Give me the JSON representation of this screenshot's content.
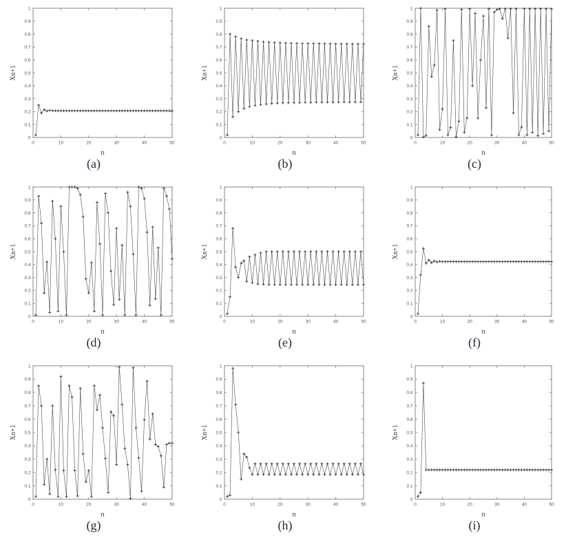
{
  "figure": {
    "background": "#ffffff",
    "line_color": "#4a4a4a",
    "marker_color": "#333333",
    "axis_color": "#7a7a7a",
    "tick_label_color": "#555555"
  },
  "chart_data": [
    {
      "type": "line",
      "caption": "(a)",
      "xlabel": "n",
      "ylabel": "Xn+1",
      "xlim": [
        0,
        50
      ],
      "ylim": [
        0,
        1
      ],
      "xticks": [
        0,
        10,
        20,
        30,
        40,
        50
      ],
      "yticks": [
        0,
        0.1,
        0.2,
        0.3,
        0.4,
        0.5,
        0.6,
        0.7,
        0.8,
        0.9,
        1
      ],
      "marker": "+",
      "legend": null,
      "grid": false,
      "values": [
        0.02,
        0.25,
        0.19,
        0.215,
        0.205,
        0.21,
        0.208,
        0.207,
        0.207,
        0.207,
        0.207,
        0.207,
        0.207,
        0.207,
        0.207,
        0.207,
        0.207,
        0.207,
        0.207,
        0.207,
        0.207,
        0.207,
        0.207,
        0.207,
        0.207,
        0.207,
        0.207,
        0.207,
        0.207,
        0.207,
        0.207,
        0.207,
        0.207,
        0.207,
        0.207,
        0.207,
        0.207,
        0.207,
        0.207,
        0.207,
        0.207,
        0.207,
        0.207,
        0.207,
        0.207,
        0.207,
        0.207,
        0.207,
        0.207,
        0.207
      ]
    },
    {
      "type": "line",
      "caption": "(b)",
      "xlabel": "n",
      "ylabel": "Xn+1",
      "xlim": [
        0,
        50
      ],
      "ylim": [
        0,
        1
      ],
      "xticks": [
        0,
        10,
        20,
        30,
        40,
        50
      ],
      "yticks": [
        0,
        0.1,
        0.2,
        0.3,
        0.4,
        0.5,
        0.6,
        0.7,
        0.8,
        0.9,
        1
      ],
      "marker": "+",
      "legend": null,
      "grid": false,
      "values": [
        0.02,
        0.8,
        0.16,
        0.78,
        0.2,
        0.765,
        0.225,
        0.755,
        0.24,
        0.75,
        0.248,
        0.745,
        0.255,
        0.74,
        0.26,
        0.737,
        0.263,
        0.734,
        0.266,
        0.732,
        0.268,
        0.73,
        0.269,
        0.729,
        0.27,
        0.728,
        0.271,
        0.727,
        0.272,
        0.727,
        0.272,
        0.726,
        0.273,
        0.726,
        0.273,
        0.725,
        0.274,
        0.725,
        0.274,
        0.724,
        0.274,
        0.724,
        0.275,
        0.724,
        0.275,
        0.723,
        0.275,
        0.723,
        0.275,
        0.723
      ]
    },
    {
      "type": "line",
      "caption": "(c)",
      "xlabel": "n",
      "ylabel": "Xn+1",
      "xlim": [
        0,
        50
      ],
      "ylim": [
        0,
        1
      ],
      "xticks": [
        0,
        10,
        20,
        30,
        40,
        50
      ],
      "yticks": [
        0,
        0.1,
        0.2,
        0.3,
        0.4,
        0.5,
        0.6,
        0.7,
        0.8,
        0.9,
        1
      ],
      "marker": "+",
      "legend": null,
      "grid": false,
      "values": [
        0.02,
        0.999,
        0.004,
        0.016,
        0.86,
        0.47,
        0.56,
        0.985,
        0.06,
        0.22,
        0.995,
        0.02,
        0.077,
        0.75,
        0.005,
        0.125,
        0.99,
        0.04,
        0.15,
        0.995,
        0.4,
        0.96,
        0.15,
        0.6,
        0.94,
        0.23,
        0.995,
        0.018,
        0.97,
        0.99,
        0.995,
        0.92,
        0.995,
        0.77,
        0.995,
        0.19,
        0.995,
        0.02,
        0.08,
        0.995,
        0.02,
        0.995,
        0.04,
        0.995,
        0.015,
        0.995,
        0.03,
        0.995,
        0.05,
        0.995
      ]
    },
    {
      "type": "line",
      "caption": "(d)",
      "xlabel": "n",
      "ylabel": "Xn+1",
      "xlim": [
        0,
        50
      ],
      "ylim": [
        0,
        1
      ],
      "xticks": [
        0,
        10,
        20,
        30,
        40,
        50
      ],
      "yticks": [
        0,
        0.1,
        0.2,
        0.3,
        0.4,
        0.5,
        0.6,
        0.7,
        0.8,
        0.9,
        1
      ],
      "marker": "+",
      "legend": null,
      "grid": false,
      "values": [
        0.01,
        0.93,
        0.72,
        0.18,
        0.42,
        0.03,
        0.89,
        0.6,
        0.04,
        0.85,
        0.5,
        0.01,
        1.0,
        1.0,
        1.0,
        0.99,
        0.94,
        0.77,
        0.29,
        0.18,
        0.415,
        0.04,
        0.88,
        0.56,
        0.01,
        0.95,
        0.8,
        0.35,
        0.09,
        0.68,
        0.13,
        0.55,
        0.01,
        0.96,
        0.85,
        0.48,
        0.01,
        1.0,
        0.99,
        0.91,
        0.65,
        0.085,
        0.69,
        0.135,
        0.53,
        0.01,
        0.99,
        0.93,
        0.83,
        0.445
      ]
    },
    {
      "type": "line",
      "caption": "(e)",
      "xlabel": "n",
      "ylabel": "Xn+1",
      "xlim": [
        0,
        50
      ],
      "ylim": [
        0,
        1
      ],
      "xticks": [
        0,
        10,
        20,
        30,
        40,
        50
      ],
      "yticks": [
        0,
        0.1,
        0.2,
        0.3,
        0.4,
        0.5,
        0.6,
        0.7,
        0.8,
        0.9,
        1
      ],
      "marker": "+",
      "legend": null,
      "grid": false,
      "values": [
        0.02,
        0.15,
        0.68,
        0.38,
        0.3,
        0.41,
        0.43,
        0.27,
        0.46,
        0.26,
        0.475,
        0.25,
        0.49,
        0.248,
        0.5,
        0.245,
        0.5,
        0.245,
        0.5,
        0.245,
        0.5,
        0.245,
        0.5,
        0.245,
        0.5,
        0.245,
        0.5,
        0.245,
        0.5,
        0.245,
        0.5,
        0.245,
        0.5,
        0.245,
        0.5,
        0.245,
        0.5,
        0.245,
        0.5,
        0.245,
        0.5,
        0.245,
        0.5,
        0.245,
        0.5,
        0.245,
        0.5,
        0.245,
        0.5,
        0.245
      ]
    },
    {
      "type": "line",
      "caption": "(f)",
      "xlabel": "n",
      "ylabel": "Xn+1",
      "xlim": [
        0,
        50
      ],
      "ylim": [
        0,
        1
      ],
      "xticks": [
        0,
        10,
        20,
        30,
        40,
        50
      ],
      "yticks": [
        0,
        0.1,
        0.2,
        0.3,
        0.4,
        0.5,
        0.6,
        0.7,
        0.8,
        0.9,
        1
      ],
      "marker": "+",
      "legend": null,
      "grid": false,
      "values": [
        0.02,
        0.32,
        0.525,
        0.41,
        0.435,
        0.415,
        0.428,
        0.42,
        0.425,
        0.422,
        0.423,
        0.423,
        0.423,
        0.423,
        0.423,
        0.423,
        0.423,
        0.423,
        0.423,
        0.423,
        0.423,
        0.423,
        0.423,
        0.423,
        0.423,
        0.423,
        0.423,
        0.423,
        0.423,
        0.423,
        0.423,
        0.423,
        0.423,
        0.423,
        0.423,
        0.423,
        0.423,
        0.423,
        0.423,
        0.423,
        0.423,
        0.423,
        0.423,
        0.423,
        0.423,
        0.423,
        0.423,
        0.423,
        0.423,
        0.423
      ]
    },
    {
      "type": "line",
      "caption": "(g)",
      "xlabel": "n",
      "ylabel": "Xn+1",
      "xlim": [
        0,
        50
      ],
      "ylim": [
        0,
        1
      ],
      "xticks": [
        0,
        10,
        20,
        30,
        40,
        50
      ],
      "yticks": [
        0,
        0.1,
        0.2,
        0.3,
        0.4,
        0.5,
        0.6,
        0.7,
        0.8,
        0.9,
        1
      ],
      "marker": "+",
      "legend": null,
      "grid": false,
      "values": [
        0.02,
        0.85,
        0.7,
        0.11,
        0.3,
        0.04,
        0.7,
        0.22,
        0.02,
        0.92,
        0.215,
        0.02,
        0.85,
        0.765,
        0.215,
        0.025,
        0.83,
        0.34,
        0.13,
        0.215,
        0.02,
        0.85,
        0.67,
        0.78,
        0.535,
        0.305,
        0.05,
        0.655,
        0.625,
        0.26,
        0.99,
        0.71,
        0.38,
        0.26,
        0.005,
        0.985,
        0.535,
        0.31,
        0.06,
        0.595,
        0.885,
        0.45,
        0.64,
        0.41,
        0.395,
        0.325,
        0.09,
        0.41,
        0.42,
        0.42
      ]
    },
    {
      "type": "line",
      "caption": "(h)",
      "xlabel": "n",
      "ylabel": "Xn+1",
      "xlim": [
        0,
        50
      ],
      "ylim": [
        0,
        1
      ],
      "xticks": [
        0,
        10,
        20,
        30,
        40,
        50
      ],
      "yticks": [
        0,
        0.1,
        0.2,
        0.3,
        0.4,
        0.5,
        0.6,
        0.7,
        0.8,
        0.9,
        1
      ],
      "marker": "+",
      "legend": null,
      "grid": false,
      "values": [
        0.02,
        0.03,
        0.98,
        0.71,
        0.5,
        0.15,
        0.34,
        0.315,
        0.235,
        0.185,
        0.265,
        0.185,
        0.265,
        0.185,
        0.265,
        0.185,
        0.265,
        0.185,
        0.265,
        0.185,
        0.265,
        0.185,
        0.265,
        0.185,
        0.265,
        0.185,
        0.265,
        0.185,
        0.265,
        0.185,
        0.265,
        0.185,
        0.265,
        0.185,
        0.265,
        0.185,
        0.265,
        0.185,
        0.265,
        0.185,
        0.265,
        0.185,
        0.265,
        0.185,
        0.265,
        0.185,
        0.265,
        0.185,
        0.265,
        0.185
      ]
    },
    {
      "type": "line",
      "caption": "(i)",
      "xlabel": "n",
      "ylabel": "Xn+1",
      "xlim": [
        0,
        50
      ],
      "ylim": [
        0,
        1
      ],
      "xticks": [
        0,
        10,
        20,
        30,
        40,
        50
      ],
      "yticks": [
        0,
        0.1,
        0.2,
        0.3,
        0.4,
        0.5,
        0.6,
        0.7,
        0.8,
        0.9,
        1
      ],
      "marker": "+",
      "legend": null,
      "grid": false,
      "values": [
        0.02,
        0.05,
        0.87,
        0.22,
        0.22,
        0.22,
        0.22,
        0.22,
        0.22,
        0.22,
        0.22,
        0.22,
        0.22,
        0.22,
        0.22,
        0.22,
        0.22,
        0.22,
        0.22,
        0.22,
        0.22,
        0.22,
        0.22,
        0.22,
        0.22,
        0.22,
        0.22,
        0.22,
        0.22,
        0.22,
        0.22,
        0.22,
        0.22,
        0.22,
        0.22,
        0.22,
        0.22,
        0.22,
        0.22,
        0.22,
        0.22,
        0.22,
        0.22,
        0.22,
        0.22,
        0.22,
        0.22,
        0.22,
        0.22,
        0.22
      ]
    }
  ]
}
